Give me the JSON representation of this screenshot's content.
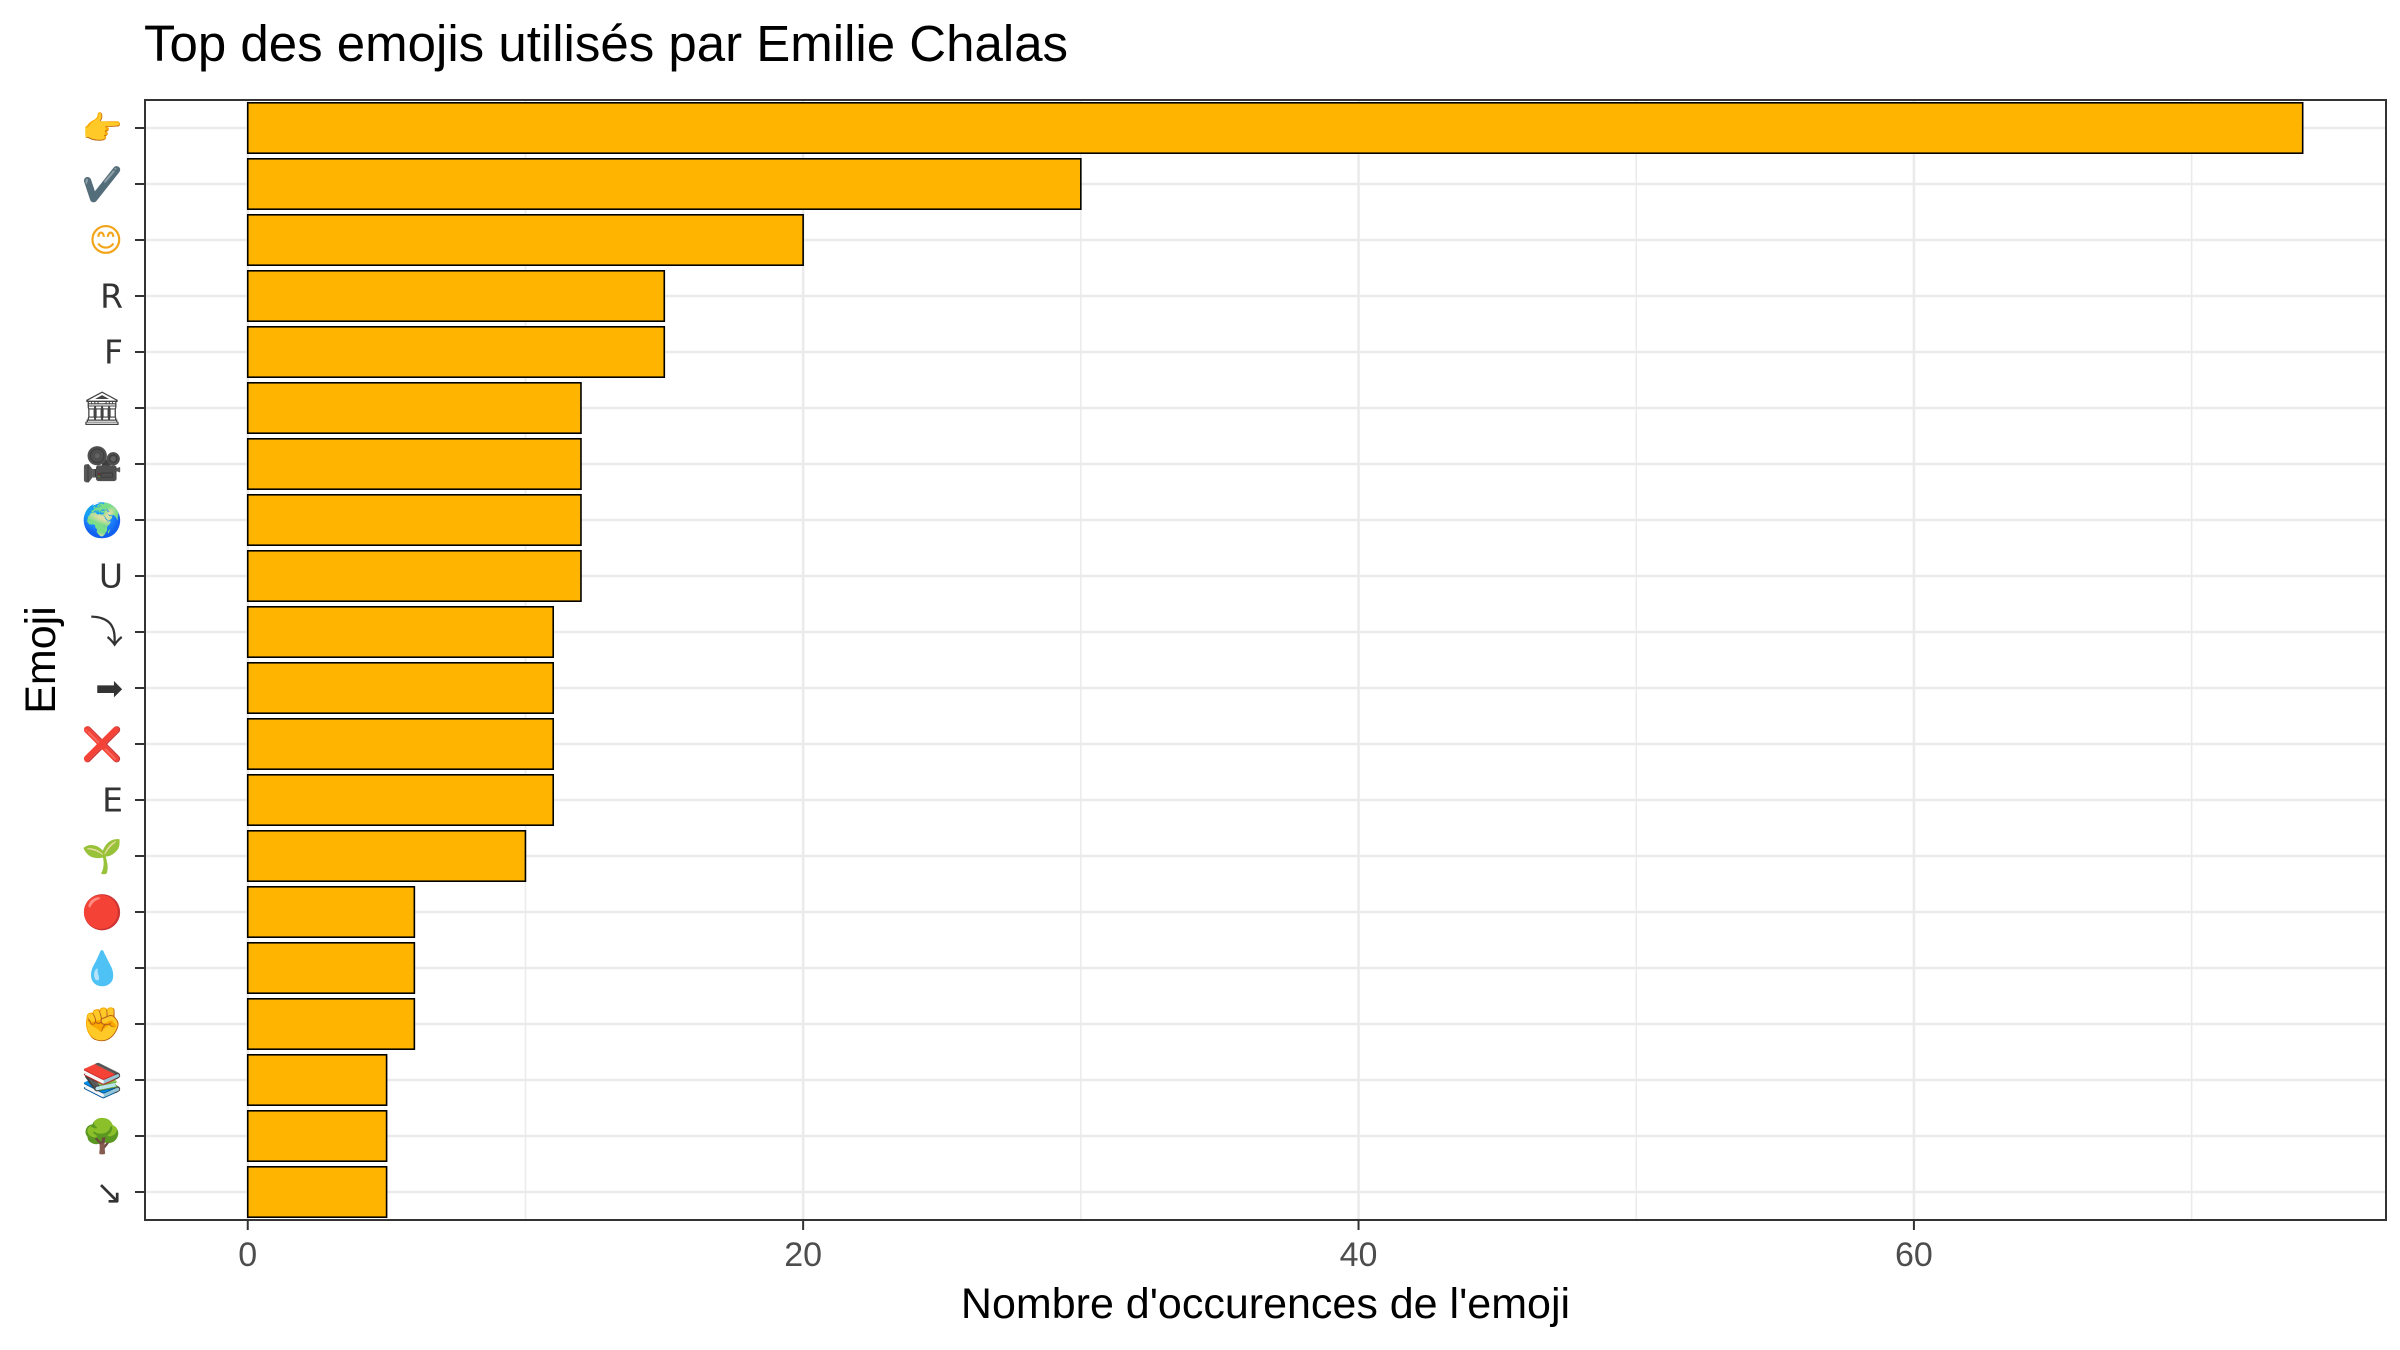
{
  "chart_data": {
    "type": "bar",
    "orientation": "horizontal",
    "title": "Top des emojis utilisés par Emilie Chalas",
    "xlabel": "Nombre d'occurences de l'emoji",
    "ylabel": "Emoji",
    "xlim": [
      -3.7,
      77
    ],
    "x_ticks": [
      "0",
      "20",
      "40",
      "60"
    ],
    "grid": true,
    "bar_color": "#FFB400",
    "bar_edge_color": "#000000",
    "categories": [
      "👉",
      "✔️",
      "😊",
      "R",
      "F",
      "🏛",
      "🎥",
      "🌍",
      "U",
      "⤵",
      "➡",
      "❌",
      "E",
      "🌱",
      "🔴",
      "💧",
      "✊",
      "📚",
      "🌳",
      "↘"
    ],
    "category_colors": [
      "#f5b324",
      "#b0b0b0",
      "#f2a51a",
      "#333333",
      "#333333",
      "#444444",
      "#333333",
      "#2f7fc7",
      "#333333",
      "#333333",
      "#333333",
      "#d8232a",
      "#333333",
      "#4a9a2c",
      "#dd3333",
      "#4aa3df",
      "#f5b324",
      "#3b7a3b",
      "#3d8b3d",
      "#333333"
    ],
    "values": [
      74,
      30,
      20,
      15,
      15,
      12,
      12,
      12,
      12,
      11,
      11,
      11,
      11,
      10,
      6,
      6,
      6,
      5,
      5,
      5
    ]
  }
}
